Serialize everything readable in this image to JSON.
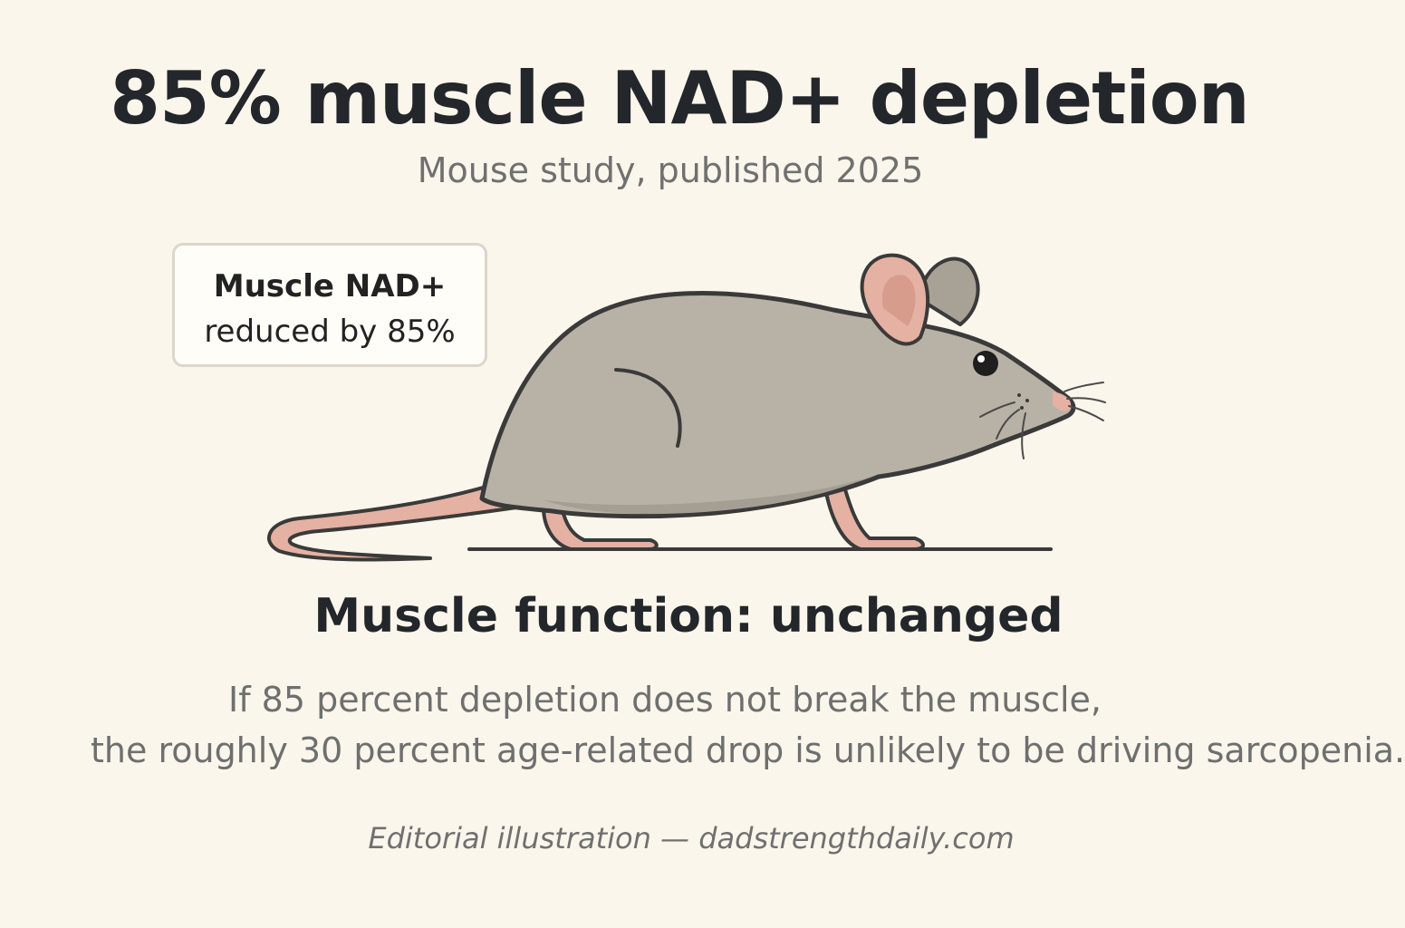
{
  "title": "85% muscle NAD+ depletion",
  "subtitle": "Mouse study, published 2025",
  "callout": {
    "line1": "Muscle NAD+",
    "line2": "reduced by 85%"
  },
  "illustration": {
    "icon": "mouse-icon",
    "body_color": "#b8b2a6",
    "belly_color": "#a49e93",
    "pink_color": "#e4b1a2",
    "outline_color": "#3a3a3a"
  },
  "result": "Muscle function: unchanged",
  "explanation": {
    "line1": "If 85 percent depletion does not break the muscle,",
    "line2": "the roughly 30 percent age-related drop is unlikely to be driving sarcopenia."
  },
  "credit": "Editorial illustration — dadstrengthdaily.com"
}
